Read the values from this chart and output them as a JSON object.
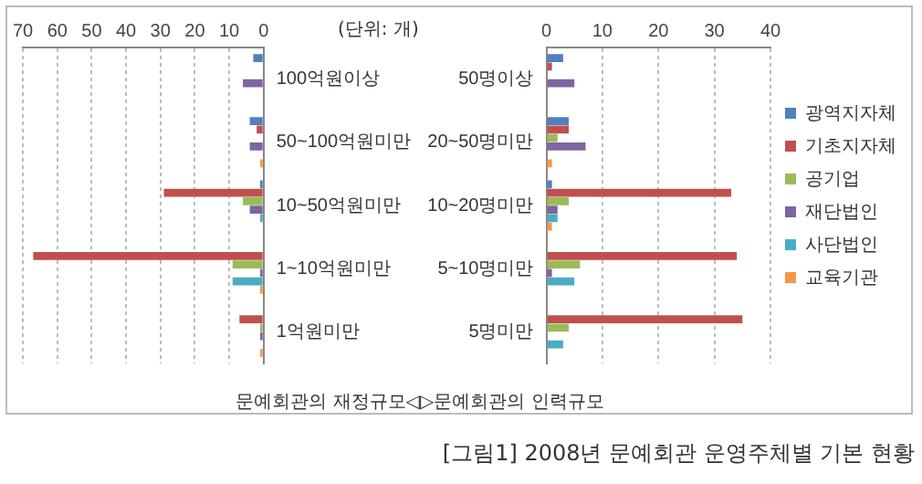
{
  "chart_data": [
    {
      "type": "bar",
      "orientation": "horizontal",
      "categories": [
        "100억원이상",
        "50~100억원미만",
        "10~50억원미만",
        "1~10억원미만",
        "1억원미만"
      ],
      "series": [
        {
          "color": "#4f81bd",
          "values": [
            3,
            4,
            1,
            null,
            null
          ]
        },
        {
          "color": "#c0504d",
          "values": [
            null,
            2,
            29,
            67,
            7
          ]
        },
        {
          "color": "#9bbb59",
          "values": [
            null,
            null,
            6,
            9,
            1
          ]
        },
        {
          "color": "#8064a2",
          "values": [
            6,
            4,
            4,
            1,
            1
          ]
        },
        {
          "color": "#4bacc6",
          "values": [
            null,
            null,
            1,
            9,
            null
          ]
        },
        {
          "color": "#f79646",
          "values": [
            null,
            1,
            null,
            1,
            1
          ]
        }
      ],
      "xlim": [
        70,
        0
      ],
      "xticks": [
        70,
        60,
        50,
        40,
        30,
        20,
        10,
        0
      ],
      "grid": "x",
      "legend": false,
      "xlabel": "문예회관의 재정규모◁",
      "annotations": [
        "(단위: 개)"
      ]
    },
    {
      "type": "bar",
      "orientation": "horizontal",
      "categories": [
        "50명이상",
        "20~50명미만",
        "10~20명미만",
        "5~10명미만",
        "5명미만"
      ],
      "series": [
        {
          "name": "광역지자체",
          "color": "#4f81bd",
          "values": [
            3,
            4,
            1,
            null,
            null
          ]
        },
        {
          "name": "기초지자체",
          "color": "#c0504d",
          "values": [
            1,
            4,
            33,
            34,
            35
          ]
        },
        {
          "name": "공기업",
          "color": "#9bbb59",
          "values": [
            null,
            2,
            4,
            6,
            4
          ]
        },
        {
          "name": "재단법인",
          "color": "#8064a2",
          "values": [
            5,
            7,
            2,
            1,
            null
          ]
        },
        {
          "name": "사단법인",
          "color": "#4bacc6",
          "values": [
            null,
            null,
            2,
            5,
            3
          ]
        },
        {
          "name": "교육기관",
          "color": "#f79646",
          "values": [
            null,
            1,
            1,
            null,
            null
          ]
        }
      ],
      "xlim": [
        0,
        40
      ],
      "xticks": [
        0,
        10,
        20,
        30,
        40
      ],
      "grid": "x",
      "legend": "right",
      "xlabel": "▷문예회관의 인력규모",
      "annotations": [
        "[그림1] 2008년 문예회관 운영주체별 기본 현황"
      ]
    }
  ]
}
